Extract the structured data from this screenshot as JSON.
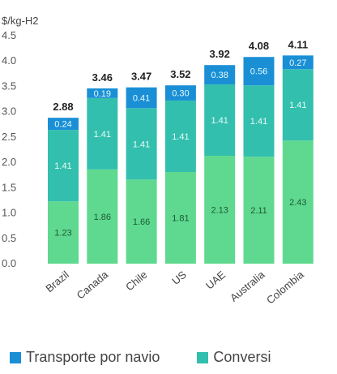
{
  "chart_data": {
    "type": "bar",
    "stacked": true,
    "ylabel": "$/kg-H2",
    "ylim": [
      0,
      4.5
    ],
    "yticks": [
      "4.5",
      "4.0",
      "3.5",
      "3.0",
      "2.5",
      "2.0",
      "1.5",
      "1.0",
      "0.5",
      "0.0"
    ],
    "grid": false,
    "categories": [
      "Brazil",
      "Canada",
      "Chile",
      "US",
      "UAE",
      "Australia",
      "Colombia"
    ],
    "totals": [
      "2.88",
      "3.46",
      "3.47",
      "3.52",
      "3.92",
      "4.08",
      "4.11"
    ],
    "series": [
      {
        "name": "",
        "color": "#5fd98f",
        "values": [
          1.23,
          1.86,
          1.66,
          1.81,
          2.13,
          2.11,
          2.43
        ],
        "labels": [
          "1.23",
          "1.86",
          "1.66",
          "1.81",
          "2.13",
          "2.11",
          "2.43"
        ]
      },
      {
        "name": "Conversi",
        "color": "#33bfae",
        "values": [
          1.41,
          1.41,
          1.41,
          1.41,
          1.41,
          1.41,
          1.41
        ],
        "labels": [
          "1.41",
          "1.41",
          "1.41",
          "1.41",
          "1.41",
          "1.41",
          "1.41"
        ]
      },
      {
        "name": "Transporte por navio",
        "color": "#1a8fd6",
        "values": [
          0.24,
          0.19,
          0.41,
          0.3,
          0.38,
          0.56,
          0.27
        ],
        "labels": [
          "0.24",
          "0.19",
          "0.41",
          "0.30",
          "0.38",
          "0.56",
          "0.27"
        ]
      }
    ],
    "legend": {
      "placement": "bottom",
      "items": [
        {
          "label": "Transporte por navio",
          "color": "#1a8fd6"
        },
        {
          "label": "Conversi",
          "color": "#33bfae"
        }
      ]
    }
  }
}
